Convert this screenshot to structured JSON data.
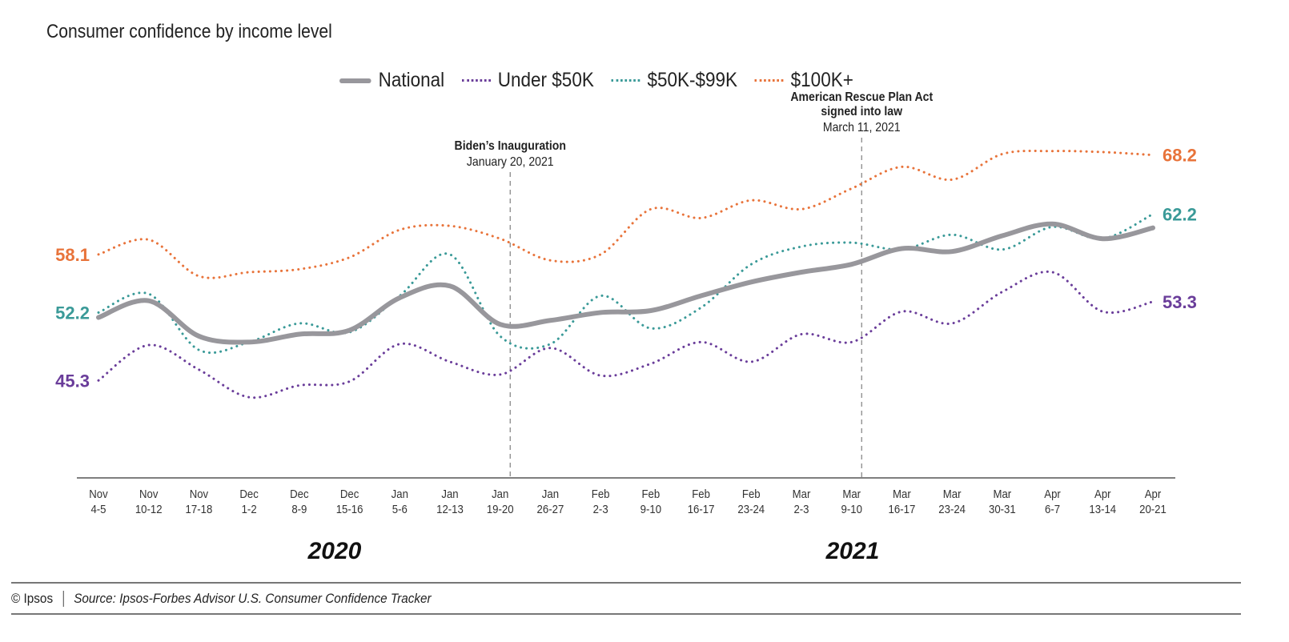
{
  "chart_data": {
    "type": "line",
    "title": "Consumer confidence by income level",
    "categories": [
      "Nov\n4-5",
      "Nov\n10-12",
      "Nov\n17-18",
      "Dec\n1-2",
      "Dec\n8-9",
      "Dec\n15-16",
      "Jan\n5-6",
      "Jan\n12-13",
      "Jan\n19-20",
      "Jan\n26-27",
      "Feb\n2-3",
      "Feb\n9-10",
      "Feb\n16-17",
      "Feb\n23-24",
      "Mar\n2-3",
      "Mar\n9-10",
      "Mar\n16-17",
      "Mar\n23-24",
      "Mar\n30-31",
      "Apr\n6-7",
      "Apr\n13-14",
      "Apr\n20-21"
    ],
    "years": [
      "2020",
      "2021"
    ],
    "ylim": [
      35,
      73
    ],
    "grid": false,
    "legend_position": "top",
    "series": [
      {
        "name": "National",
        "color": "#98979c",
        "style": "solid",
        "values": [
          51.7,
          53.4,
          49.8,
          49.2,
          50.0,
          50.4,
          53.7,
          54.9,
          51.0,
          51.4,
          52.2,
          52.4,
          53.9,
          55.3,
          56.3,
          57.1,
          58.7,
          58.4,
          60.0,
          61.2,
          59.7,
          60.8
        ]
      },
      {
        "name": "Under $50K",
        "color": "#6a3d9a",
        "style": "dotted",
        "values": [
          45.3,
          48.9,
          46.4,
          43.6,
          44.8,
          45.2,
          49.0,
          47.2,
          45.9,
          48.6,
          45.8,
          47.0,
          49.2,
          47.2,
          50.0,
          49.2,
          52.3,
          51.1,
          54.3,
          56.3,
          52.3,
          53.3
        ],
        "first_label": "45.3",
        "last_label": "53.3"
      },
      {
        "name": "$50K-$99K",
        "color": "#3a9a98",
        "style": "dotted",
        "values": [
          52.2,
          54.1,
          48.4,
          49.2,
          51.1,
          50.2,
          53.9,
          58.1,
          49.8,
          49.0,
          53.9,
          50.6,
          52.7,
          57.1,
          58.9,
          59.3,
          58.6,
          60.1,
          58.6,
          60.9,
          59.7,
          62.2
        ],
        "first_label": "52.2",
        "last_label": "62.2"
      },
      {
        "name": "$100K+",
        "color": "#e8733a",
        "style": "dotted",
        "values": [
          58.1,
          59.6,
          55.9,
          56.3,
          56.6,
          57.8,
          60.6,
          61.0,
          59.7,
          57.5,
          58.1,
          62.7,
          61.8,
          63.6,
          62.7,
          64.8,
          67.0,
          65.7,
          68.3,
          68.6,
          68.5,
          68.2
        ],
        "first_label": "58.1",
        "last_label": "68.2"
      }
    ],
    "annotations": [
      {
        "title": "Biden’s Inauguration",
        "subtitle": "January 20, 2021",
        "at_category_index": 8.2
      },
      {
        "title": "American Rescue Plan Act\nsigned into law",
        "subtitle": "March 11, 2021",
        "at_category_index": 15.2
      }
    ]
  },
  "footer": {
    "copyright": "© Ipsos",
    "source": "Source: Ipsos-Forbes Advisor U.S. Consumer Confidence Tracker"
  }
}
